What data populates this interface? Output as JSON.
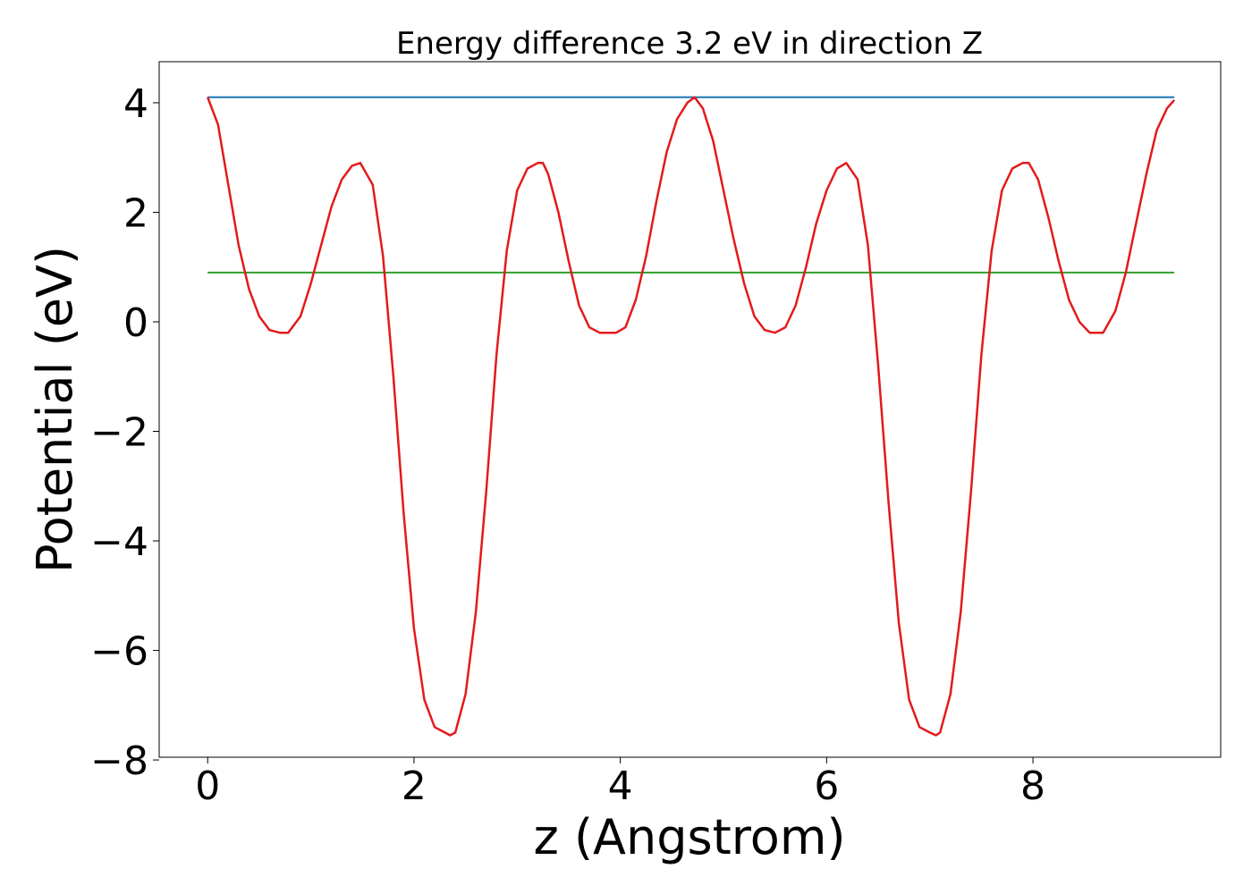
{
  "chart_data": {
    "type": "line",
    "title": "Energy difference 3.2 eV in direction Z",
    "xlabel": "z (Angstrom)",
    "ylabel": "Potential (eV)",
    "xlim": [
      -0.47,
      9.82
    ],
    "ylim": [
      -7.95,
      4.75
    ],
    "xticks": [
      0,
      2,
      4,
      6,
      8
    ],
    "xtick_labels": [
      "0",
      "2",
      "4",
      "6",
      "8"
    ],
    "yticks": [
      -8,
      -6,
      -4,
      -2,
      0,
      2,
      4
    ],
    "ytick_labels": [
      "−8",
      "−6",
      "−4",
      "−2",
      "0",
      "2",
      "4"
    ],
    "grid": false,
    "legend": "none",
    "series": [
      {
        "color": "#1f77b4",
        "x": [
          0,
          9.37
        ],
        "y": [
          4.1,
          4.1
        ]
      },
      {
        "color": "#2ca02c",
        "x": [
          0,
          9.37
        ],
        "y": [
          0.9,
          0.9
        ]
      },
      {
        "color": "#e31a1c",
        "x": [
          0.0,
          0.1,
          0.2,
          0.3,
          0.4,
          0.5,
          0.6,
          0.7,
          0.78,
          0.9,
          1.0,
          1.1,
          1.2,
          1.3,
          1.4,
          1.48,
          1.6,
          1.7,
          1.8,
          1.9,
          2.0,
          2.1,
          2.2,
          2.3,
          2.35,
          2.4,
          2.5,
          2.6,
          2.7,
          2.8,
          2.9,
          3.0,
          3.1,
          3.2,
          3.25,
          3.3,
          3.4,
          3.5,
          3.6,
          3.7,
          3.8,
          3.9,
          3.96,
          4.05,
          4.15,
          4.25,
          4.35,
          4.45,
          4.55,
          4.65,
          4.72,
          4.8,
          4.9,
          5.0,
          5.1,
          5.2,
          5.3,
          5.4,
          5.5,
          5.6,
          5.7,
          5.8,
          5.9,
          6.0,
          6.1,
          6.19,
          6.3,
          6.4,
          6.5,
          6.6,
          6.7,
          6.8,
          6.9,
          7.0,
          7.06,
          7.1,
          7.2,
          7.3,
          7.4,
          7.5,
          7.6,
          7.7,
          7.8,
          7.9,
          7.96,
          8.05,
          8.15,
          8.25,
          8.35,
          8.45,
          8.55,
          8.68,
          8.8,
          8.9,
          9.0,
          9.1,
          9.2,
          9.3,
          9.37
        ],
        "y": [
          4.1,
          3.6,
          2.5,
          1.4,
          0.6,
          0.1,
          -0.15,
          -0.2,
          -0.2,
          0.1,
          0.7,
          1.4,
          2.1,
          2.6,
          2.85,
          2.9,
          2.5,
          1.2,
          -1.0,
          -3.5,
          -5.6,
          -6.9,
          -7.4,
          -7.5,
          -7.55,
          -7.5,
          -6.8,
          -5.3,
          -3.1,
          -0.6,
          1.3,
          2.4,
          2.8,
          2.9,
          2.9,
          2.7,
          2.0,
          1.1,
          0.3,
          -0.1,
          -0.2,
          -0.2,
          -0.2,
          -0.1,
          0.4,
          1.2,
          2.2,
          3.1,
          3.7,
          4.0,
          4.1,
          3.9,
          3.3,
          2.4,
          1.5,
          0.7,
          0.1,
          -0.15,
          -0.2,
          -0.1,
          0.3,
          1.0,
          1.8,
          2.4,
          2.8,
          2.9,
          2.6,
          1.4,
          -0.8,
          -3.3,
          -5.5,
          -6.9,
          -7.4,
          -7.5,
          -7.55,
          -7.5,
          -6.8,
          -5.3,
          -3.1,
          -0.6,
          1.3,
          2.4,
          2.8,
          2.9,
          2.9,
          2.6,
          1.9,
          1.1,
          0.4,
          0.0,
          -0.2,
          -0.2,
          0.2,
          0.9,
          1.8,
          2.7,
          3.5,
          3.9,
          4.05
        ]
      }
    ]
  }
}
